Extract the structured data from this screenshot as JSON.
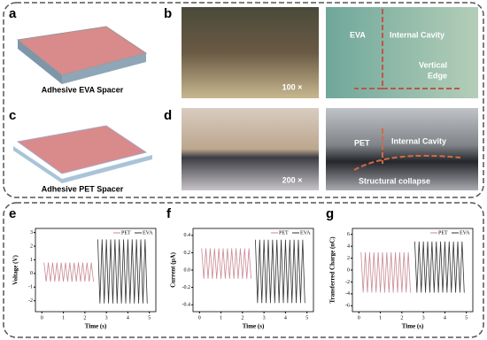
{
  "panels": {
    "a": {
      "label": "a",
      "caption": "Adhesive EVA Spacer"
    },
    "b": {
      "label": "b",
      "scale": "100 ×",
      "material": "EVA",
      "cavity": "Internal Cavity",
      "edge": [
        "Vertical",
        "Edge"
      ]
    },
    "c": {
      "label": "c",
      "caption": "Adhesive PET Spacer"
    },
    "d": {
      "label": "d",
      "scale": "200 ×",
      "material": "PET",
      "cavity": "Internal Cavity",
      "collapse": "Structural collapse"
    }
  },
  "chart_data": [
    {
      "type": "line",
      "label": "e",
      "y_label": "Voltage (V)",
      "x_label": "Time (s)",
      "xlim": [
        -0.3,
        5.3
      ],
      "xticks": [
        0,
        1,
        2,
        3,
        4,
        5
      ],
      "ylim": [
        -2.8,
        3.3
      ],
      "yticks": [
        -2,
        -1,
        0,
        1,
        2,
        3
      ],
      "series": [
        {
          "name": "PET",
          "color": "#c98a97",
          "x": [
            0.1,
            0.2,
            0.3,
            0.4,
            0.5,
            0.6,
            0.7,
            0.8,
            0.9,
            1.0,
            1.1,
            1.2,
            1.3,
            1.4,
            1.5,
            1.6,
            1.7,
            1.8,
            1.9,
            2.0,
            2.1,
            2.2,
            2.3,
            2.4
          ],
          "values": [
            0.8,
            -0.6,
            0.8,
            -0.6,
            0.8,
            -0.6,
            0.8,
            -0.6,
            0.8,
            -0.6,
            0.8,
            -0.6,
            0.8,
            -0.6,
            0.8,
            -0.6,
            0.8,
            -0.6,
            0.8,
            -0.6,
            0.8,
            -0.6,
            0.8,
            -0.6
          ]
        },
        {
          "name": "EVA",
          "color": "#333333",
          "x": [
            2.6,
            2.7,
            2.8,
            2.9,
            3.0,
            3.1,
            3.2,
            3.3,
            3.4,
            3.5,
            3.6,
            3.7,
            3.8,
            3.9,
            4.0,
            4.1,
            4.2,
            4.3,
            4.4,
            4.5,
            4.6,
            4.7,
            4.8,
            4.9
          ],
          "values": [
            2.5,
            -2.2,
            2.5,
            -2.2,
            2.5,
            -2.2,
            2.5,
            -2.2,
            2.5,
            -2.2,
            2.5,
            -2.2,
            2.5,
            -2.2,
            2.5,
            -2.2,
            2.5,
            -2.2,
            2.5,
            -2.2,
            2.5,
            -2.2,
            2.5,
            -2.2
          ]
        }
      ]
    },
    {
      "type": "line",
      "label": "f",
      "y_label": "Current (μA)",
      "x_label": "Time (s)",
      "xlim": [
        -0.3,
        5.3
      ],
      "xticks": [
        0,
        1,
        2,
        3,
        4,
        5
      ],
      "ylim": [
        -0.48,
        0.48
      ],
      "yticks": [
        -0.4,
        -0.2,
        {
          "value": 0,
          "label": "0.0"
        },
        0.2,
        0.4
      ],
      "series": [
        {
          "name": "PET",
          "color": "#c98a97",
          "x": [
            0.1,
            0.2,
            0.3,
            0.4,
            0.5,
            0.6,
            0.7,
            0.8,
            0.9,
            1.0,
            1.1,
            1.2,
            1.3,
            1.4,
            1.5,
            1.6,
            1.7,
            1.8,
            1.9,
            2.0,
            2.1,
            2.2,
            2.3,
            2.4
          ],
          "values": [
            0.25,
            -0.1,
            0.25,
            -0.1,
            0.25,
            -0.1,
            0.25,
            -0.1,
            0.25,
            -0.1,
            0.25,
            -0.1,
            0.25,
            -0.1,
            0.25,
            -0.1,
            0.25,
            -0.1,
            0.25,
            -0.1,
            0.25,
            -0.1,
            0.25,
            -0.1
          ]
        },
        {
          "name": "EVA",
          "color": "#333333",
          "x": [
            2.6,
            2.7,
            2.8,
            2.9,
            3.0,
            3.1,
            3.2,
            3.3,
            3.4,
            3.5,
            3.6,
            3.7,
            3.8,
            3.9,
            4.0,
            4.1,
            4.2,
            4.3,
            4.4,
            4.5,
            4.6,
            4.7,
            4.8,
            4.9
          ],
          "values": [
            0.35,
            -0.38,
            0.35,
            -0.38,
            0.35,
            -0.38,
            0.35,
            -0.38,
            0.35,
            -0.38,
            0.35,
            -0.38,
            0.35,
            -0.38,
            0.35,
            -0.38,
            0.35,
            -0.38,
            0.35,
            -0.38,
            0.35,
            -0.38,
            0.35,
            -0.38
          ]
        }
      ]
    },
    {
      "type": "line",
      "label": "g",
      "y_label": "Transferred Charge (nC)",
      "x_label": "Time (s)",
      "xlim": [
        -0.3,
        5.3
      ],
      "xticks": [
        0,
        1,
        2,
        3,
        4,
        5
      ],
      "ylim": [
        -7,
        7
      ],
      "yticks": [
        -6,
        -4,
        -2,
        0,
        2,
        4,
        6
      ],
      "series": [
        {
          "name": "PET",
          "color": "#c98a97",
          "x": [
            0.1,
            0.2,
            0.3,
            0.4,
            0.5,
            0.6,
            0.7,
            0.8,
            0.9,
            1.0,
            1.1,
            1.2,
            1.3,
            1.4,
            1.5,
            1.6,
            1.7,
            1.8,
            1.9,
            2.0,
            2.1,
            2.2,
            2.3,
            2.4
          ],
          "values": [
            3,
            -3.8,
            3,
            -3.8,
            3,
            -3.8,
            3,
            -3.8,
            3,
            -3.8,
            3,
            -3.8,
            3,
            -3.8,
            3,
            -3.8,
            3,
            -3.8,
            3,
            -3.8,
            3,
            -3.8,
            3,
            -3.8
          ]
        },
        {
          "name": "EVA",
          "color": "#333333",
          "x": [
            2.6,
            2.7,
            2.8,
            2.9,
            3.0,
            3.1,
            3.2,
            3.3,
            3.4,
            3.5,
            3.6,
            3.7,
            3.8,
            3.9,
            4.0,
            4.1,
            4.2,
            4.3,
            4.4,
            4.5,
            4.6,
            4.7,
            4.8,
            4.9
          ],
          "values": [
            4.8,
            -3.8,
            4.8,
            -3.8,
            4.8,
            -3.8,
            4.8,
            -3.8,
            4.8,
            -3.8,
            4.8,
            -3.8,
            4.8,
            -3.8,
            4.8,
            -3.8,
            4.8,
            -3.8,
            4.8,
            -3.8,
            4.8,
            -3.8,
            4.8,
            -3.8
          ]
        }
      ]
    }
  ]
}
